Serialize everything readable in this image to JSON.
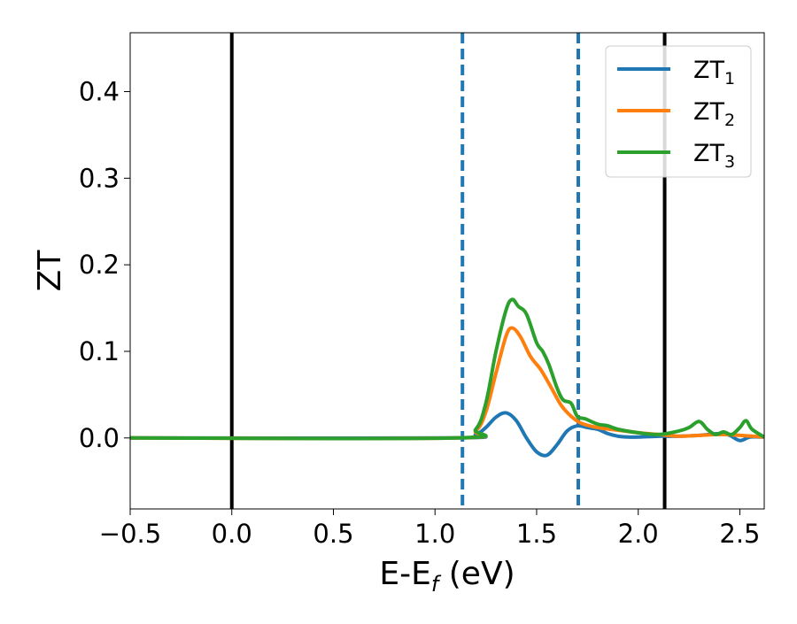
{
  "chart_data": {
    "type": "line",
    "title": "",
    "xlabel_main": "E-E",
    "xlabel_sub": "f",
    "xlabel_tail": " (eV)",
    "ylabel": "ZT",
    "xlim": [
      -0.5,
      2.62
    ],
    "ylim": [
      -0.082,
      0.468
    ],
    "xticks": [
      -0.5,
      0.0,
      0.5,
      1.0,
      1.5,
      2.0,
      2.5
    ],
    "xtick_labels": [
      "−0.5",
      "0.0",
      "0.5",
      "1.0",
      "1.5",
      "2.0",
      "2.5"
    ],
    "yticks": [
      0.0,
      0.1,
      0.2,
      0.3,
      0.4
    ],
    "ytick_labels": [
      "0.0",
      "0.1",
      "0.2",
      "0.3",
      "0.4"
    ],
    "grid": false,
    "legend_position": "top-right",
    "vlines": [
      {
        "x": 0.0,
        "style": "solid",
        "color": "#000000"
      },
      {
        "x": 1.135,
        "style": "dashed",
        "color": "#1f77b4"
      },
      {
        "x": 1.705,
        "style": "dashed",
        "color": "#1f77b4"
      },
      {
        "x": 2.13,
        "style": "solid",
        "color": "#000000"
      }
    ],
    "series": [
      {
        "name": "ZT",
        "subscript": "1",
        "color": "#1f77b4",
        "x": [
          -0.5,
          1.1,
          1.2,
          1.25,
          1.3,
          1.35,
          1.4,
          1.45,
          1.5,
          1.55,
          1.6,
          1.65,
          1.7,
          1.75,
          1.8,
          1.85,
          1.9,
          1.95,
          2.0,
          2.1,
          2.2,
          2.3,
          2.4,
          2.45,
          2.5,
          2.55,
          2.62
        ],
        "y": [
          0.0,
          0.0,
          0.004,
          0.012,
          0.024,
          0.029,
          0.02,
          0.0,
          -0.016,
          -0.02,
          -0.008,
          0.008,
          0.014,
          0.012,
          0.01,
          0.005,
          0.002,
          0.001,
          0.001,
          0.002,
          0.002,
          0.003,
          0.005,
          0.003,
          -0.003,
          0.001,
          0.001
        ]
      },
      {
        "name": "ZT",
        "subscript": "2",
        "color": "#ff7f0e",
        "x": [
          -0.5,
          1.1,
          1.2,
          1.25,
          1.3,
          1.35,
          1.38,
          1.42,
          1.47,
          1.52,
          1.57,
          1.62,
          1.67,
          1.72,
          1.8,
          1.9,
          2.0,
          2.1,
          2.2,
          2.3,
          2.4,
          2.5,
          2.62
        ],
        "y": [
          0.0,
          0.0,
          0.008,
          0.03,
          0.075,
          0.118,
          0.127,
          0.117,
          0.094,
          0.079,
          0.059,
          0.038,
          0.025,
          0.017,
          0.012,
          0.009,
          0.006,
          0.004,
          0.002,
          0.003,
          0.004,
          0.003,
          0.001
        ]
      },
      {
        "name": "ZT",
        "subscript": "3",
        "color": "#2ca02c",
        "x": [
          -0.5,
          1.1,
          1.2,
          1.25,
          1.3,
          1.35,
          1.38,
          1.41,
          1.45,
          1.5,
          1.53,
          1.56,
          1.6,
          1.63,
          1.67,
          1.7,
          1.74,
          1.8,
          1.85,
          1.9,
          2.0,
          2.1,
          2.2,
          2.25,
          2.3,
          2.34,
          2.38,
          2.42,
          2.46,
          2.5,
          2.53,
          2.56,
          2.62
        ],
        "y": [
          0.0,
          0.0,
          0.01,
          0.04,
          0.1,
          0.148,
          0.16,
          0.152,
          0.143,
          0.11,
          0.1,
          0.085,
          0.058,
          0.044,
          0.04,
          0.025,
          0.022,
          0.016,
          0.014,
          0.01,
          0.006,
          0.004,
          0.008,
          0.012,
          0.019,
          0.01,
          0.004,
          0.007,
          0.004,
          0.012,
          0.02,
          0.01,
          0.001
        ]
      }
    ]
  }
}
